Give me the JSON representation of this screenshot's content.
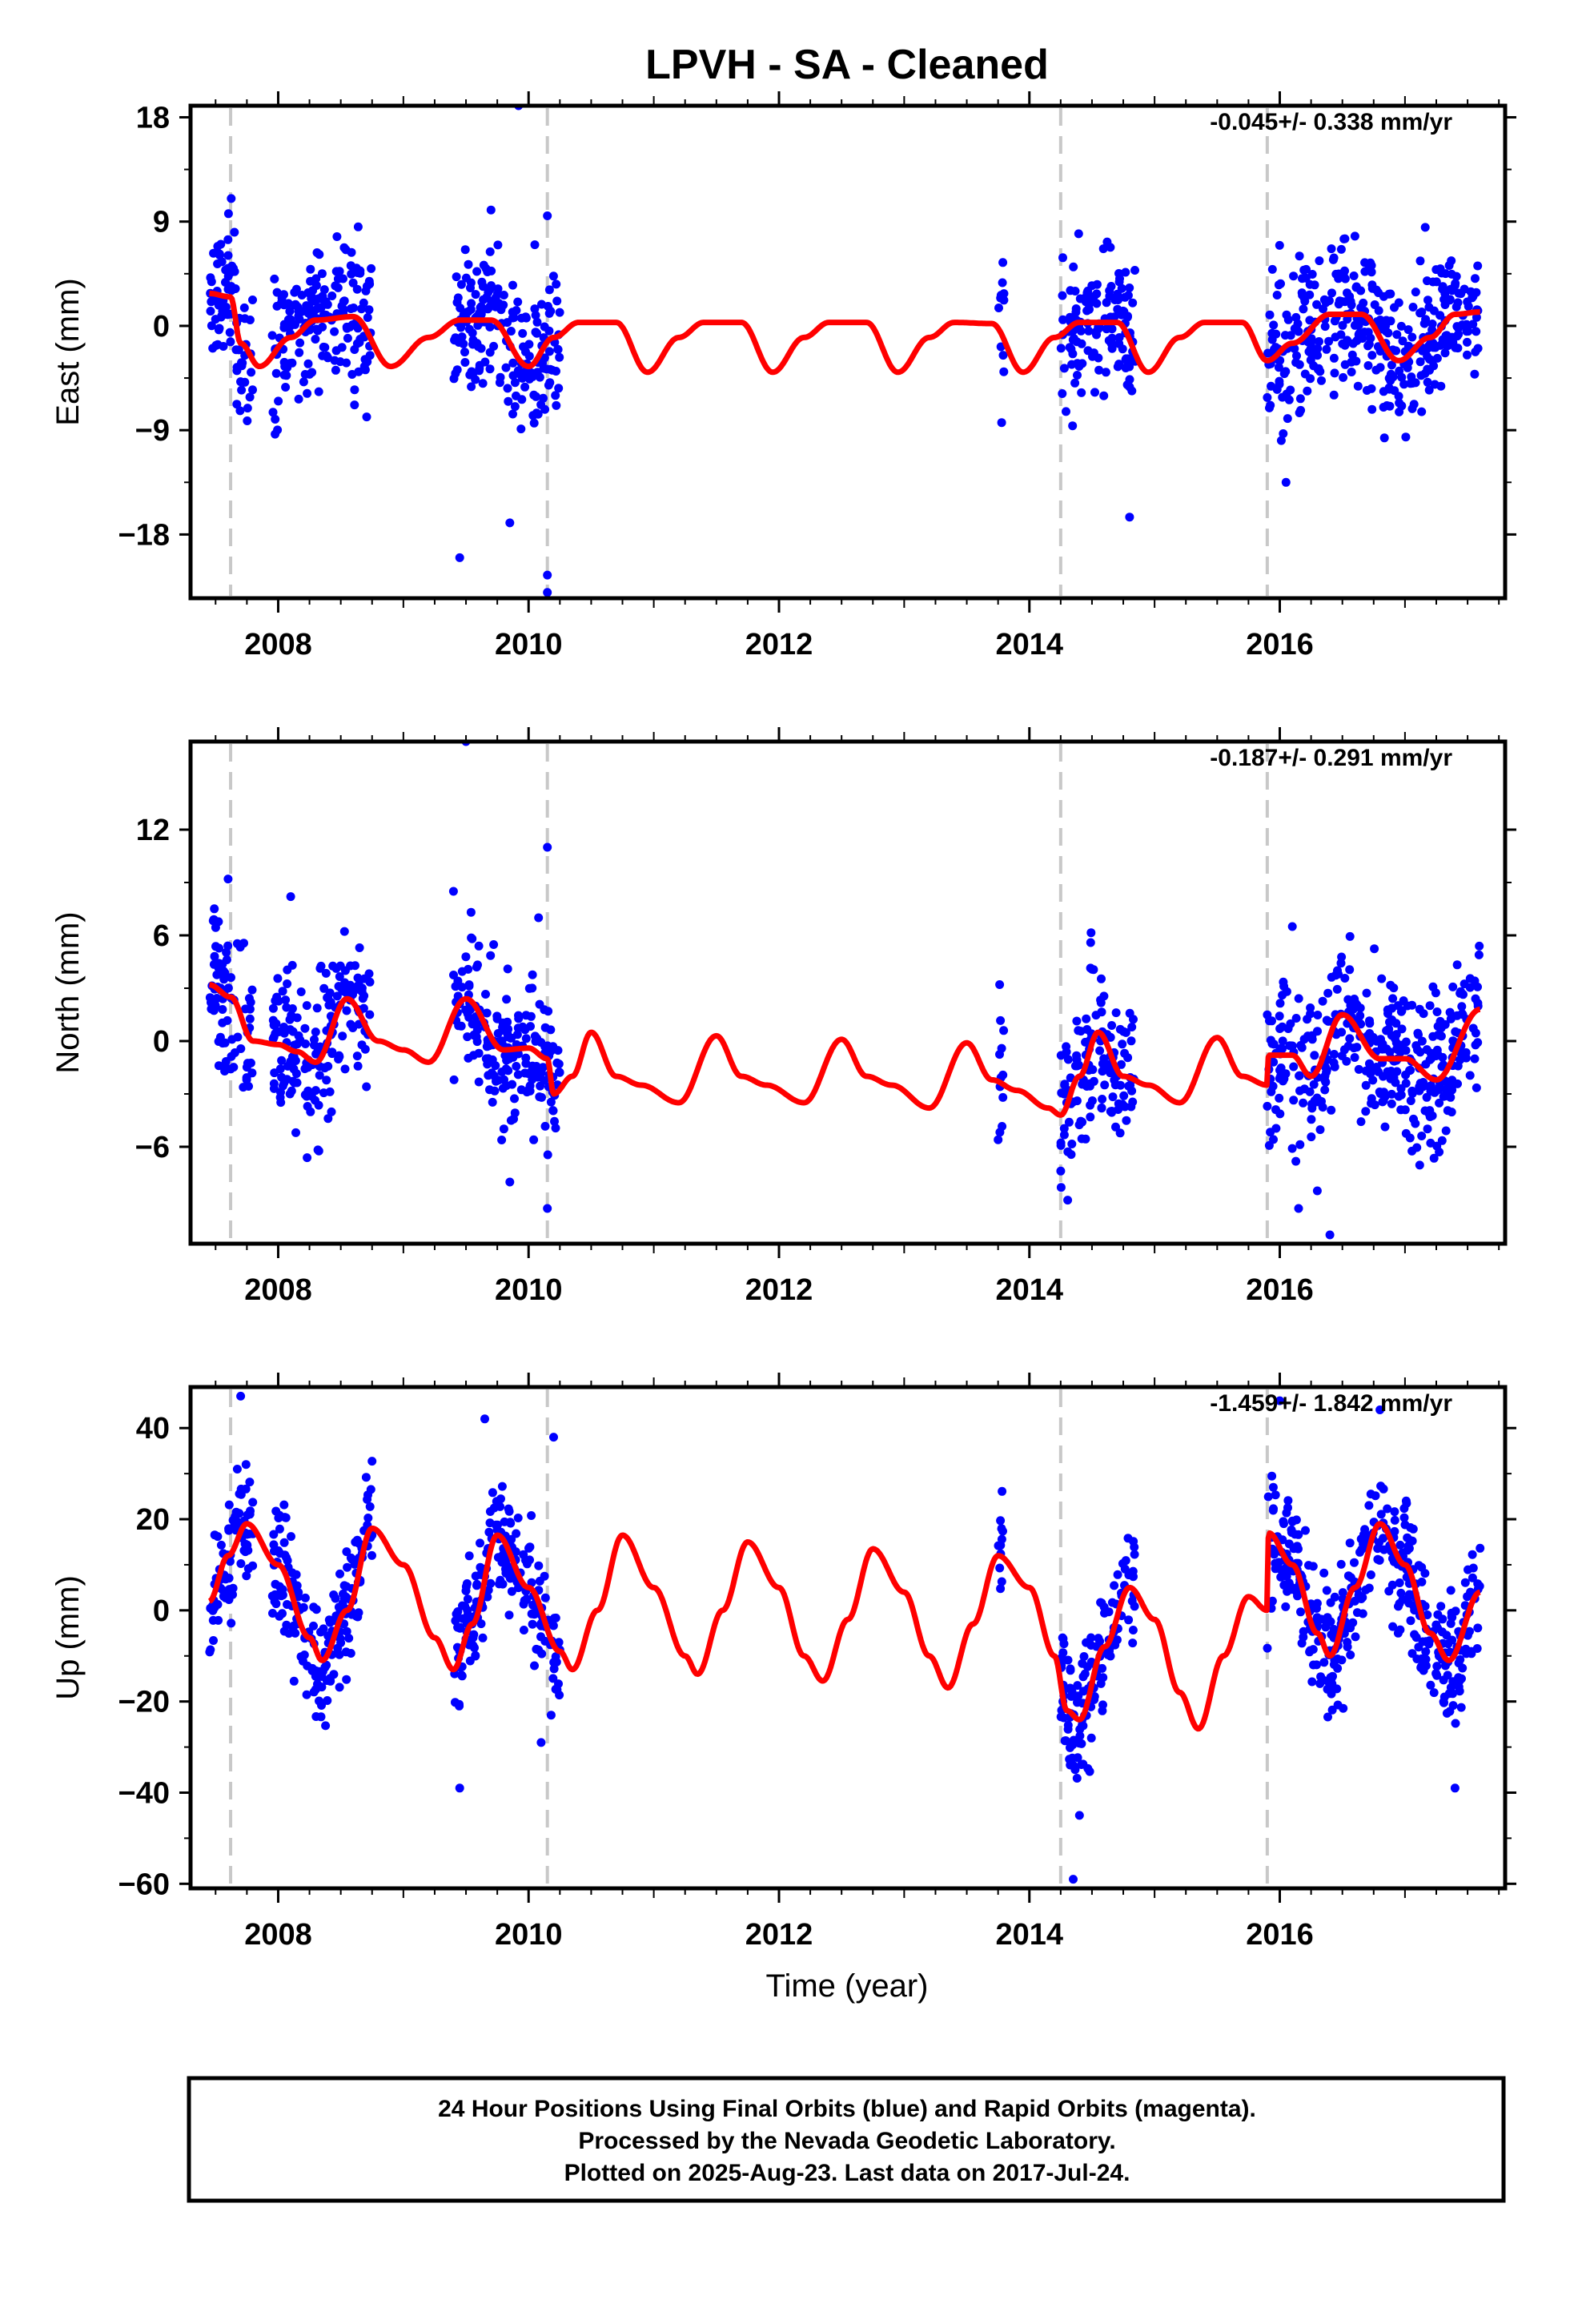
{
  "title": "LPVH  - SA - Cleaned",
  "xlabel": "Time (year)",
  "footer": [
    "24 Hour Positions Using Final Orbits (blue) and Rapid Orbits (magenta).",
    "Processed by the Nevada Geodetic Laboratory.",
    "Plotted on 2025-Aug-23. Last data on 2017-Jul-24."
  ],
  "colors": {
    "data": "#0000ff",
    "model": "#ff0000",
    "steps": "#c8c8c8",
    "axes": "#000000"
  },
  "chart_data": [
    {
      "type": "scatter",
      "component": "east",
      "ylabel": "East (mm)",
      "rate": "-0.045+/- 0.338 mm/yr",
      "xlim": [
        2007.3,
        2017.8
      ],
      "ylim": [
        -23.5,
        19
      ],
      "yticks": [
        18,
        9,
        0,
        -9,
        -18
      ],
      "xticks": [
        2008,
        2010,
        2012,
        2014,
        2016
      ],
      "steps": [
        2007.62,
        2010.15,
        2014.25,
        2015.9
      ],
      "segments": [
        [
          2007.45,
          2007.8
        ],
        [
          2007.95,
          2008.75
        ],
        [
          2009.4,
          2010.25
        ],
        [
          2013.75,
          2013.8
        ],
        [
          2014.25,
          2014.85
        ],
        [
          2015.9,
          2017.6
        ]
      ],
      "noise": 3.2,
      "outliers": [
        [
          2009.92,
          19
        ],
        [
          2009.7,
          10
        ],
        [
          2009.45,
          -20
        ],
        [
          2010.15,
          -23
        ],
        [
          2010.15,
          -21.5
        ],
        [
          2009.85,
          -17
        ],
        [
          2014.8,
          -16.5
        ],
        [
          2016.05,
          -13.5
        ],
        [
          2010.05,
          7
        ],
        [
          2010.15,
          9.5
        ]
      ],
      "model": {
        "trend": 0.0,
        "jumps": [
          [
            2007.62,
            -2.5
          ],
          [
            2015.9,
            -3
          ]
        ],
        "knots": [
          [
            2007.45,
            2.8
          ],
          [
            2007.62,
            2.5
          ],
          [
            2007.7,
            -1.5
          ],
          [
            2007.85,
            -3.5
          ],
          [
            2008.1,
            -1
          ],
          [
            2008.3,
            0.5
          ],
          [
            2008.6,
            0.8
          ],
          [
            2008.9,
            -3.5
          ],
          [
            2009.2,
            -1
          ],
          [
            2009.45,
            0.5
          ],
          [
            2009.7,
            0.5
          ],
          [
            2010.0,
            -3.5
          ],
          [
            2010.2,
            -1
          ],
          [
            2010.4,
            0.3
          ],
          [
            2010.7,
            0.3
          ],
          [
            2010.95,
            -4
          ],
          [
            2011.2,
            -1
          ],
          [
            2011.4,
            0.3
          ],
          [
            2011.7,
            0.3
          ],
          [
            2011.95,
            -4
          ],
          [
            2012.2,
            -1
          ],
          [
            2012.4,
            0.3
          ],
          [
            2012.7,
            0.3
          ],
          [
            2012.95,
            -4
          ],
          [
            2013.2,
            -1
          ],
          [
            2013.4,
            0.3
          ],
          [
            2013.7,
            0.2
          ],
          [
            2013.95,
            -4
          ],
          [
            2014.2,
            -1
          ],
          [
            2014.4,
            0.3
          ],
          [
            2014.7,
            0.3
          ],
          [
            2014.95,
            -4
          ],
          [
            2015.2,
            -1
          ],
          [
            2015.4,
            0.3
          ],
          [
            2015.7,
            0.3
          ],
          [
            2015.9,
            -3
          ],
          [
            2016.1,
            -1.5
          ],
          [
            2016.4,
            1
          ],
          [
            2016.65,
            1
          ],
          [
            2016.95,
            -3
          ],
          [
            2017.2,
            -1
          ],
          [
            2017.4,
            1
          ],
          [
            2017.6,
            1.2
          ]
        ]
      }
    },
    {
      "type": "scatter",
      "component": "north",
      "ylabel": "North (mm)",
      "rate": "-0.187+/- 0.291 mm/yr",
      "xlim": [
        2007.3,
        2017.8
      ],
      "ylim": [
        -11.5,
        17
      ],
      "yticks": [
        12,
        6,
        0,
        -6
      ],
      "xticks": [
        2008,
        2010,
        2012,
        2014,
        2016
      ],
      "steps": [
        2007.62,
        2010.15,
        2014.25,
        2015.9
      ],
      "segments": [
        [
          2007.45,
          2007.8
        ],
        [
          2007.95,
          2008.75
        ],
        [
          2009.4,
          2010.25
        ],
        [
          2013.75,
          2013.8
        ],
        [
          2014.25,
          2014.85
        ],
        [
          2015.9,
          2017.6
        ]
      ],
      "noise": 2.3,
      "outliers": [
        [
          2009.5,
          17
        ],
        [
          2010.15,
          11
        ],
        [
          2007.6,
          9.2
        ],
        [
          2008.1,
          8.2
        ],
        [
          2009.4,
          8.5
        ],
        [
          2010.08,
          7
        ],
        [
          2010.15,
          -9.5
        ],
        [
          2009.85,
          -8
        ],
        [
          2016.4,
          -11
        ],
        [
          2016.15,
          -9.5
        ],
        [
          2016.1,
          6.5
        ],
        [
          2013.75,
          -5.6
        ],
        [
          2016.3,
          -8.5
        ]
      ],
      "model": {
        "trend": -0.18,
        "jumps": [],
        "knots": [
          [
            2007.45,
            3.2
          ],
          [
            2007.62,
            2.5
          ],
          [
            2007.8,
            0
          ],
          [
            2008.0,
            -0.2
          ],
          [
            2008.15,
            -0.6
          ],
          [
            2008.3,
            -1.2
          ],
          [
            2008.55,
            2.4
          ],
          [
            2008.8,
            0
          ],
          [
            2009.0,
            -0.5
          ],
          [
            2009.2,
            -1.2
          ],
          [
            2009.5,
            2.4
          ],
          [
            2009.8,
            -0.5
          ],
          [
            2010.0,
            -0.4
          ],
          [
            2010.15,
            -1.0
          ],
          [
            2010.2,
            -3.0
          ],
          [
            2010.35,
            -2.0
          ],
          [
            2010.5,
            0.5
          ],
          [
            2010.7,
            -2.0
          ],
          [
            2010.9,
            -2.5
          ],
          [
            2011.2,
            -3.5
          ],
          [
            2011.5,
            0.3
          ],
          [
            2011.7,
            -2.0
          ],
          [
            2011.9,
            -2.5
          ],
          [
            2012.2,
            -3.5
          ],
          [
            2012.5,
            0.1
          ],
          [
            2012.7,
            -2.0
          ],
          [
            2012.9,
            -2.5
          ],
          [
            2013.2,
            -3.8
          ],
          [
            2013.5,
            -0.1
          ],
          [
            2013.7,
            -2.2
          ],
          [
            2013.9,
            -2.8
          ],
          [
            2014.15,
            -3.8
          ],
          [
            2014.25,
            -4.2
          ],
          [
            2014.4,
            -2.0
          ],
          [
            2014.55,
            0.5
          ],
          [
            2014.75,
            -2.0
          ],
          [
            2014.95,
            -2.5
          ],
          [
            2015.2,
            -3.5
          ],
          [
            2015.5,
            0.2
          ],
          [
            2015.7,
            -2.0
          ],
          [
            2015.9,
            -2.5
          ],
          [
            2015.91,
            -0.8
          ],
          [
            2016.1,
            -0.8
          ],
          [
            2016.25,
            -2.0
          ],
          [
            2016.5,
            1.5
          ],
          [
            2016.8,
            -1.0
          ],
          [
            2017.0,
            -1.0
          ],
          [
            2017.25,
            -2.2
          ],
          [
            2017.6,
            1.8
          ]
        ]
      }
    },
    {
      "type": "scatter",
      "component": "up",
      "ylabel": "Up (mm)",
      "rate": "-1.459+/- 1.842 mm/yr",
      "xlim": [
        2007.3,
        2017.8
      ],
      "ylim": [
        -61,
        49
      ],
      "yticks": [
        40,
        20,
        0,
        -20,
        -40,
        -60
      ],
      "xticks": [
        2008,
        2010,
        2012,
        2014,
        2016
      ],
      "steps": [
        2007.62,
        2010.15,
        2014.25,
        2015.9
      ],
      "segments": [
        [
          2007.45,
          2007.8
        ],
        [
          2007.95,
          2008.75
        ],
        [
          2009.4,
          2010.25
        ],
        [
          2013.75,
          2013.8
        ],
        [
          2014.25,
          2014.85
        ],
        [
          2015.9,
          2017.6
        ]
      ],
      "noise": 7,
      "outliers": [
        [
          2007.7,
          47
        ],
        [
          2009.65,
          42
        ],
        [
          2010.2,
          38
        ],
        [
          2010.1,
          -29
        ],
        [
          2009.45,
          -39
        ],
        [
          2014.35,
          -59
        ],
        [
          2014.4,
          -45
        ],
        [
          2017.4,
          -39
        ],
        [
          2016.0,
          46
        ],
        [
          2016.8,
          44
        ]
      ],
      "model": {
        "trend": 0.0,
        "jumps": [
          [
            2015.9,
            17
          ]
        ],
        "knots": [
          [
            2007.45,
            2
          ],
          [
            2007.6,
            12
          ],
          [
            2007.75,
            19
          ],
          [
            2008.0,
            10
          ],
          [
            2008.25,
            -6
          ],
          [
            2008.35,
            -11
          ],
          [
            2008.55,
            0
          ],
          [
            2008.75,
            18
          ],
          [
            2009.0,
            10
          ],
          [
            2009.25,
            -6
          ],
          [
            2009.4,
            -13
          ],
          [
            2009.55,
            -3
          ],
          [
            2009.75,
            16.5
          ],
          [
            2010.0,
            5
          ],
          [
            2010.25,
            -9
          ],
          [
            2010.35,
            -13
          ],
          [
            2010.55,
            0
          ],
          [
            2010.75,
            16.5
          ],
          [
            2011.0,
            5
          ],
          [
            2011.25,
            -10
          ],
          [
            2011.35,
            -14
          ],
          [
            2011.55,
            0
          ],
          [
            2011.75,
            15
          ],
          [
            2012.0,
            5
          ],
          [
            2012.2,
            -10
          ],
          [
            2012.35,
            -15.5
          ],
          [
            2012.55,
            -2
          ],
          [
            2012.75,
            13.5
          ],
          [
            2013.0,
            4
          ],
          [
            2013.2,
            -10
          ],
          [
            2013.35,
            -17
          ],
          [
            2013.55,
            -3
          ],
          [
            2013.75,
            12
          ],
          [
            2014.0,
            5
          ],
          [
            2014.2,
            -10
          ],
          [
            2014.3,
            -22
          ],
          [
            2014.4,
            -24
          ],
          [
            2014.6,
            -8
          ],
          [
            2014.8,
            5
          ],
          [
            2015.0,
            -2
          ],
          [
            2015.2,
            -18
          ],
          [
            2015.35,
            -26
          ],
          [
            2015.55,
            -10
          ],
          [
            2015.75,
            3
          ],
          [
            2015.9,
            0
          ],
          [
            2015.91,
            17
          ],
          [
            2016.1,
            10
          ],
          [
            2016.3,
            -5
          ],
          [
            2016.4,
            -10
          ],
          [
            2016.6,
            5
          ],
          [
            2016.8,
            19
          ],
          [
            2017.0,
            10
          ],
          [
            2017.2,
            -5
          ],
          [
            2017.35,
            -11
          ],
          [
            2017.6,
            4
          ]
        ]
      }
    }
  ]
}
